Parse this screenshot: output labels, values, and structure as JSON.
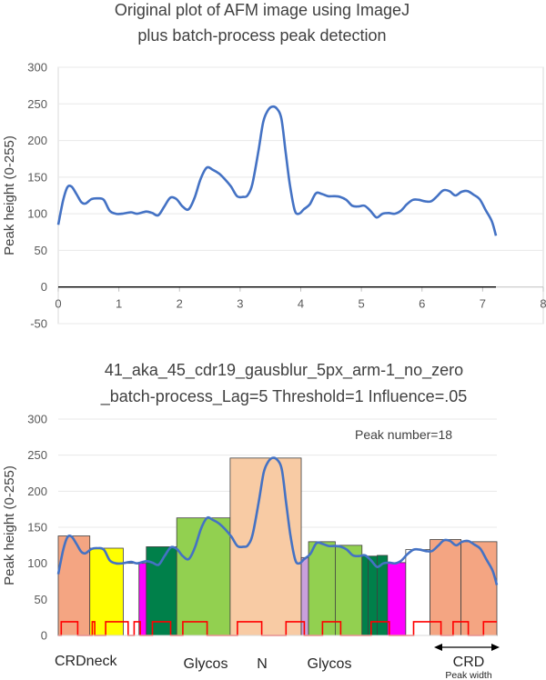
{
  "chart_data": [
    {
      "type": "line",
      "title": [
        "Original plot of AFM image using ImageJ",
        "plus batch-process peak detection"
      ],
      "xlabel": "",
      "ylabel": "Peak height (0-255)",
      "xlim": [
        0,
        8
      ],
      "ylim": [
        -50,
        300
      ],
      "xticks": [
        0,
        1,
        2,
        3,
        4,
        5,
        6,
        7,
        8
      ],
      "yticks": [
        -50,
        0,
        50,
        100,
        150,
        200,
        250,
        300
      ],
      "series": [
        {
          "color": "#4472c4",
          "x": [
            0,
            0.08,
            0.15,
            0.22,
            0.3,
            0.38,
            0.45,
            0.55,
            0.65,
            0.75,
            0.85,
            0.95,
            1.05,
            1.2,
            1.3,
            1.45,
            1.55,
            1.65,
            1.75,
            1.85,
            1.95,
            2.05,
            2.15,
            2.25,
            2.35,
            2.45,
            2.55,
            2.65,
            2.75,
            2.85,
            2.95,
            3.05,
            3.12,
            3.2,
            3.3,
            3.38,
            3.45,
            3.52,
            3.6,
            3.68,
            3.75,
            3.82,
            3.9,
            3.97,
            4.05,
            4.15,
            4.25,
            4.35,
            4.45,
            4.55,
            4.65,
            4.75,
            4.85,
            4.95,
            5.05,
            5.15,
            5.25,
            5.35,
            5.45,
            5.55,
            5.65,
            5.75,
            5.85,
            5.95,
            6.05,
            6.15,
            6.25,
            6.35,
            6.45,
            6.55,
            6.65,
            6.75,
            6.85,
            6.95,
            7.05,
            7.15,
            7.22
          ],
          "y": [
            85,
            118,
            136,
            137,
            127,
            116,
            114,
            120,
            121,
            119,
            104,
            100,
            100,
            102,
            100,
            103,
            101,
            98,
            110,
            122,
            120,
            110,
            106,
            122,
            148,
            163,
            160,
            155,
            147,
            137,
            124,
            123,
            125,
            140,
            185,
            225,
            240,
            246,
            244,
            230,
            185,
            140,
            105,
            100,
            106,
            113,
            128,
            127,
            124,
            124,
            123,
            119,
            111,
            110,
            111,
            104,
            95,
            100,
            101,
            100,
            104,
            113,
            119,
            119,
            117,
            117,
            124,
            132,
            131,
            125,
            130,
            131,
            126,
            120,
            105,
            90,
            70
          ]
        },
        {
          "color": "#000000",
          "x": [
            0,
            0.5,
            1.15,
            1.35,
            2.05,
            2.35,
            3.25,
            3.55,
            4.65,
            4.85,
            5.25,
            5.65,
            6.45,
            6.75,
            7.22
          ],
          "y": [
            0,
            0,
            0,
            0,
            0,
            0,
            0,
            0,
            0,
            0,
            0,
            0,
            0,
            0,
            0
          ]
        }
      ]
    },
    {
      "type": "bar",
      "title": [
        "41_aka_45_cdr19_gausblur_5px_arm-1_no_zero",
        "_batch-process_Lag=5 Threshold=1 Influence=.05"
      ],
      "ylabel": "Peak height (0-255)",
      "ylim": [
        0,
        300
      ],
      "yticks": [
        0,
        50,
        100,
        150,
        200,
        250,
        300
      ],
      "annotation": "Peak number=18",
      "bars": [
        {
          "x0": 0.0,
          "x1": 0.52,
          "value": 138,
          "color": "#f4a582"
        },
        {
          "x0": 0.52,
          "x1": 1.07,
          "value": 121,
          "color": "#ffff00"
        },
        {
          "x0": 1.07,
          "x1": 1.33,
          "value": 100,
          "color": "#ffffff"
        },
        {
          "x0": 1.33,
          "x1": 1.45,
          "value": 100,
          "color": "#ff00ff"
        },
        {
          "x0": 1.45,
          "x1": 1.95,
          "value": 123,
          "color": "#00804a"
        },
        {
          "x0": 1.95,
          "x1": 2.83,
          "value": 163,
          "color": "#92d050"
        },
        {
          "x0": 2.83,
          "x1": 4.0,
          "value": 246,
          "color": "#f8cba4"
        },
        {
          "x0": 4.0,
          "x1": 4.12,
          "value": 108,
          "color": "#c9a0dc"
        },
        {
          "x0": 4.12,
          "x1": 4.56,
          "value": 130,
          "color": "#92d050"
        },
        {
          "x0": 4.56,
          "x1": 5.0,
          "value": 125,
          "color": "#92d050"
        },
        {
          "x0": 5.0,
          "x1": 5.1,
          "value": 110,
          "color": "#00804a"
        },
        {
          "x0": 5.1,
          "x1": 5.25,
          "value": 110,
          "color": "#00804a"
        },
        {
          "x0": 5.25,
          "x1": 5.42,
          "value": 111,
          "color": "#00804a"
        },
        {
          "x0": 5.42,
          "x1": 5.72,
          "value": 101,
          "color": "#ff00ff"
        },
        {
          "x0": 5.72,
          "x1": 6.12,
          "value": 119,
          "color": "#ffffff"
        },
        {
          "x0": 6.12,
          "x1": 6.63,
          "value": 133,
          "color": "#f4a582"
        },
        {
          "x0": 6.63,
          "x1": 7.22,
          "value": 130,
          "color": "#f4a582"
        }
      ],
      "signal_color": "#ff0000",
      "signal_x": [
        0,
        0.05,
        0.05,
        0.32,
        0.32,
        0.56,
        0.56,
        0.6,
        0.6,
        0.78,
        0.78,
        1.15,
        1.15,
        1.25,
        1.25,
        1.35,
        1.35,
        1.55,
        1.55,
        1.85,
        1.85,
        2.05,
        2.05,
        2.45,
        2.45,
        2.95,
        2.95,
        3.35,
        3.35,
        3.75,
        3.75,
        4.05,
        4.05,
        4.35,
        4.35,
        4.65,
        4.65,
        5.15,
        5.15,
        5.45,
        5.45,
        5.85,
        5.85,
        6.3,
        6.3,
        6.5,
        6.5,
        6.75,
        6.75,
        7.0,
        7.0,
        7.22
      ],
      "signal_y": [
        0,
        0,
        19,
        19,
        0,
        0,
        19,
        19,
        0,
        0,
        19,
        19,
        0,
        0,
        19,
        19,
        0,
        0,
        19,
        19,
        0,
        0,
        19,
        19,
        0,
        0,
        19,
        19,
        0,
        0,
        19,
        19,
        0,
        0,
        19,
        19,
        0,
        0,
        19,
        19,
        0,
        0,
        19,
        19,
        0,
        0,
        19,
        19,
        0,
        0,
        19,
        19
      ],
      "region_labels": [
        "CRDneck",
        "Glycos",
        "N",
        "Glycos",
        "CRD",
        "Peak width"
      ]
    }
  ]
}
